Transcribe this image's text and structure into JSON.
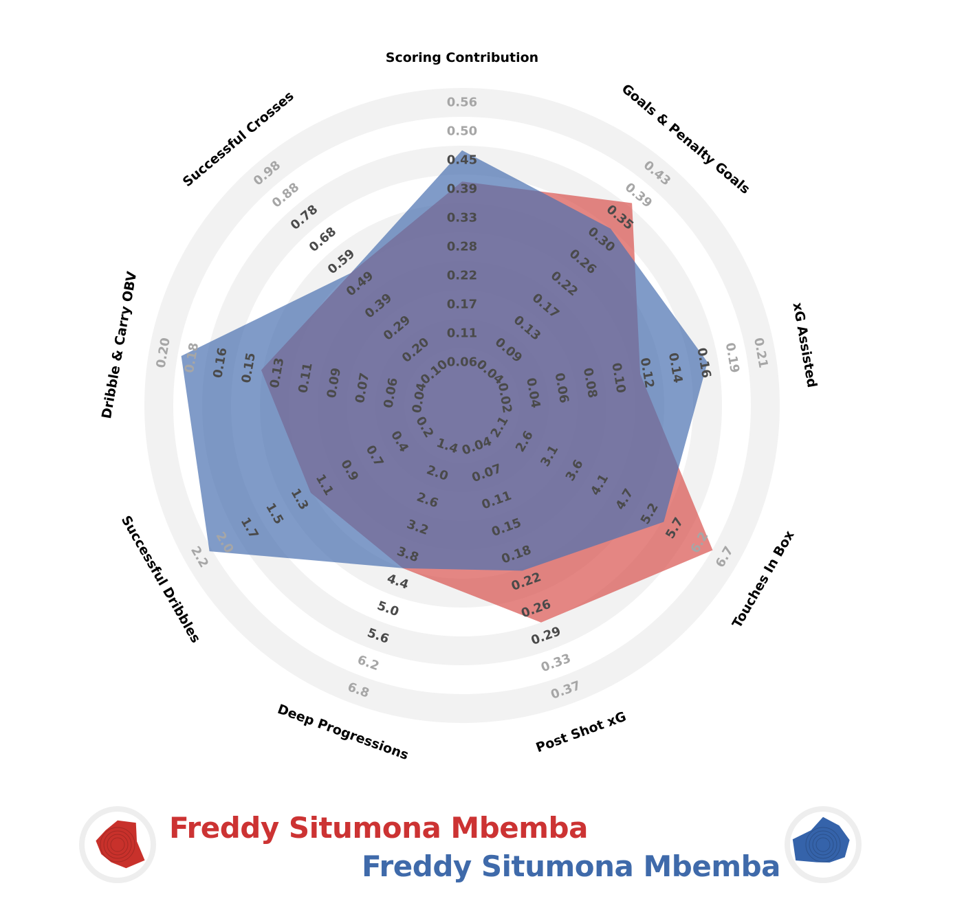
{
  "chart_data": {
    "type": "radar",
    "axes": [
      {
        "label": "Scoring Contribution",
        "ticks": [
          "0.06",
          "0.11",
          "0.17",
          "0.22",
          "0.28",
          "0.33",
          "0.39",
          "0.45",
          "0.50",
          "0.56"
        ]
      },
      {
        "label": "Goals & Penalty Goals",
        "ticks": [
          "0.04",
          "0.09",
          "0.13",
          "0.17",
          "0.22",
          "0.26",
          "0.30",
          "0.35",
          "0.39",
          "0.43"
        ]
      },
      {
        "label": "xG Assisted",
        "ticks": [
          "0.02",
          "0.04",
          "0.06",
          "0.08",
          "0.10",
          "0.12",
          "0.14",
          "0.16",
          "0.19",
          "0.21"
        ]
      },
      {
        "label": "Touches In Box",
        "ticks": [
          "2.1",
          "2.6",
          "3.1",
          "3.6",
          "4.1",
          "4.7",
          "5.2",
          "5.7",
          "6.2",
          "6.7"
        ]
      },
      {
        "label": "Post Shot xG",
        "ticks": [
          "0.04",
          "0.07",
          "0.11",
          "0.15",
          "0.18",
          "0.22",
          "0.26",
          "0.29",
          "0.33",
          "0.37"
        ]
      },
      {
        "label": "Deep Progressions",
        "ticks": [
          "1.4",
          "2.0",
          "2.6",
          "3.2",
          "3.8",
          "4.4",
          "5.0",
          "5.6",
          "6.2",
          "6.8"
        ]
      },
      {
        "label": "Successful Dribbles",
        "ticks": [
          "0.2",
          "0.4",
          "0.7",
          "0.9",
          "1.1",
          "1.3",
          "1.5",
          "1.7",
          "2.0",
          "2.2"
        ]
      },
      {
        "label": "Dribble & Carry OBV",
        "ticks": [
          "0.04",
          "0.06",
          "0.07",
          "0.09",
          "0.11",
          "0.13",
          "0.15",
          "0.16",
          "0.18",
          "0.20"
        ]
      },
      {
        "label": "Successful Crosses",
        "ticks": [
          "0.10",
          "0.20",
          "0.29",
          "0.39",
          "0.49",
          "0.59",
          "0.68",
          "0.78",
          "0.88",
          "0.98"
        ]
      }
    ],
    "series": [
      {
        "name": "Freddy Situmona Mbemba",
        "color": "#d9534f",
        "values": [
          0.38,
          0.35,
          0.11,
          6.2,
          0.26,
          3.8,
          1.1,
          0.13,
          0.49
        ]
      },
      {
        "name": "Freddy Situmona Mbemba",
        "color": "#4a70b0",
        "values": [
          0.44,
          0.3,
          0.16,
          5.2,
          0.19,
          3.8,
          2.0,
          0.18,
          0.49
        ]
      }
    ]
  },
  "legend": {
    "player_a": {
      "name": "Freddy Situmona Mbemba",
      "color": "#cc3333"
    },
    "player_b": {
      "name": "Freddy Situmona Mbemba",
      "color": "#3f6aaa"
    }
  },
  "colors": {
    "ring_band": "#f2f2f2",
    "tick_outer": "#a6a6a6",
    "tick_inner": "#4a4a4a",
    "red_fill": "#d9534f",
    "blue_fill": "#4a70b0",
    "icon_red": "#c8312b",
    "icon_blue": "#3563aa"
  }
}
